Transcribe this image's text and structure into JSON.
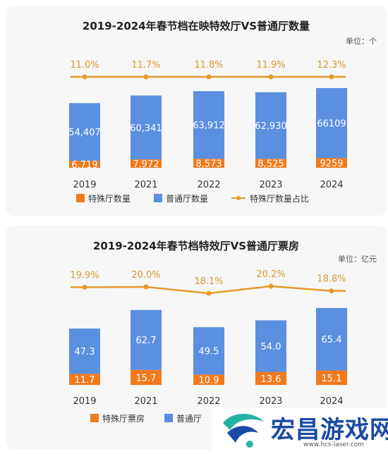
{
  "colors": {
    "special": "#f07a1d",
    "regular": "#5b8fe0",
    "ratio_line": "#e69a2c",
    "ratio_text": "#d79a33",
    "bar_text": "#ffffff",
    "axis_text": "#333333",
    "title_text": "#222222"
  },
  "chart_data": [
    {
      "type": "bar",
      "stacked": true,
      "title": "2019-2024年春节档在映特效厅VS普通厅数量",
      "unit": "单位：个",
      "categories": [
        "2019",
        "2021",
        "2022",
        "2023",
        "2024"
      ],
      "series": [
        {
          "name": "特殊厅数量",
          "role": "special",
          "values": [
            6719,
            7972,
            8573,
            8525,
            9259
          ],
          "labels": [
            "6,719",
            "7,972",
            "8,573",
            "8,525",
            "9259"
          ]
        },
        {
          "name": "普通厅数量",
          "role": "regular",
          "values": [
            54407,
            60341,
            63912,
            62930,
            66109
          ],
          "labels": [
            "54,407",
            "60,341",
            "63,912",
            "62,930",
            "66109"
          ]
        },
        {
          "name": "特殊厅数量占比",
          "role": "ratio",
          "type": "line",
          "values": [
            11.0,
            11.7,
            11.8,
            11.9,
            12.3
          ],
          "labels": [
            "11.0%",
            "11.7%",
            "11.8%",
            "11.9%",
            "12.3%"
          ]
        }
      ],
      "ylim": [
        0,
        80000
      ],
      "ratio_ylim": [
        11.0,
        12.3
      ],
      "legend": "bottom"
    },
    {
      "type": "bar",
      "stacked": true,
      "title": "2019-2024年春节档特效厅VS普通厅票房",
      "unit": "单位：亿元",
      "categories": [
        "2019",
        "2021",
        "2022",
        "2023",
        "2024"
      ],
      "series": [
        {
          "name": "特殊厅票房",
          "role": "special",
          "values": [
            11.7,
            15.7,
            10.9,
            13.6,
            15.1
          ],
          "labels": [
            "11.7",
            "15.7",
            "10.9",
            "13.6",
            "15.1"
          ]
        },
        {
          "name": "普通厅",
          "role": "regular",
          "values": [
            47.3,
            62.7,
            49.5,
            54.0,
            65.4
          ],
          "labels": [
            "47.3",
            "62.7",
            "49.5",
            "54.0",
            "65.4"
          ]
        },
        {
          "name": "",
          "role": "ratio",
          "type": "line",
          "values": [
            19.9,
            20.0,
            18.1,
            20.2,
            18.8
          ],
          "labels": [
            "19.9%",
            "20.0%",
            "18.1%",
            "20.2%",
            "18.8%"
          ]
        }
      ],
      "ylim": [
        0,
        90
      ],
      "ratio_ylim": [
        18.1,
        20.2
      ],
      "legend": "bottom"
    }
  ],
  "watermark": {
    "title": "宏昌游戏网",
    "url": "www.hcs-laser.com"
  }
}
